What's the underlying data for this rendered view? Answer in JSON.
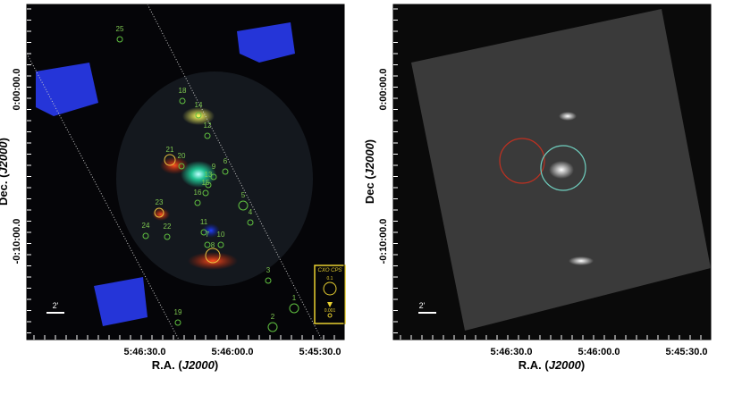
{
  "panels": [
    {
      "dec_ticks": [
        "0:00:00.0",
        "-0:10:00.0"
      ],
      "ra_ticks": [
        "5:46:30.0",
        "5:46:00.0",
        "5:45:30.0"
      ],
      "x_label": {
        "prefix": "R.A. (",
        "epoch": "J2000",
        "suffix": ")"
      },
      "y_label": {
        "prefix": "Dec. (",
        "epoch": "J2000",
        "suffix": ")"
      },
      "scale_bar": "2'",
      "sources": [
        "25",
        "18",
        "14",
        "12",
        "21",
        "20",
        "6",
        "9",
        "13",
        "15",
        "16",
        "5",
        "23",
        "4",
        "11",
        "7",
        "10",
        "24",
        "22",
        "8",
        "3",
        "1",
        "2",
        "19"
      ],
      "legend": {
        "title": "CXO CPS",
        "high": "0.1",
        "low": "0.001"
      }
    },
    {
      "dec_ticks": [
        "0:00:00.0",
        "-0:10:00.0"
      ],
      "ra_ticks": [
        "5:46:30.0",
        "5:46:00.0",
        "5:45:30.0"
      ],
      "x_label": {
        "prefix": "R.A. (",
        "epoch": "J2000",
        "suffix": ")"
      },
      "y_label": {
        "prefix": "Dec (",
        "epoch": "J2000",
        "suffix": ")"
      },
      "scale_bar": "2'"
    }
  ]
}
